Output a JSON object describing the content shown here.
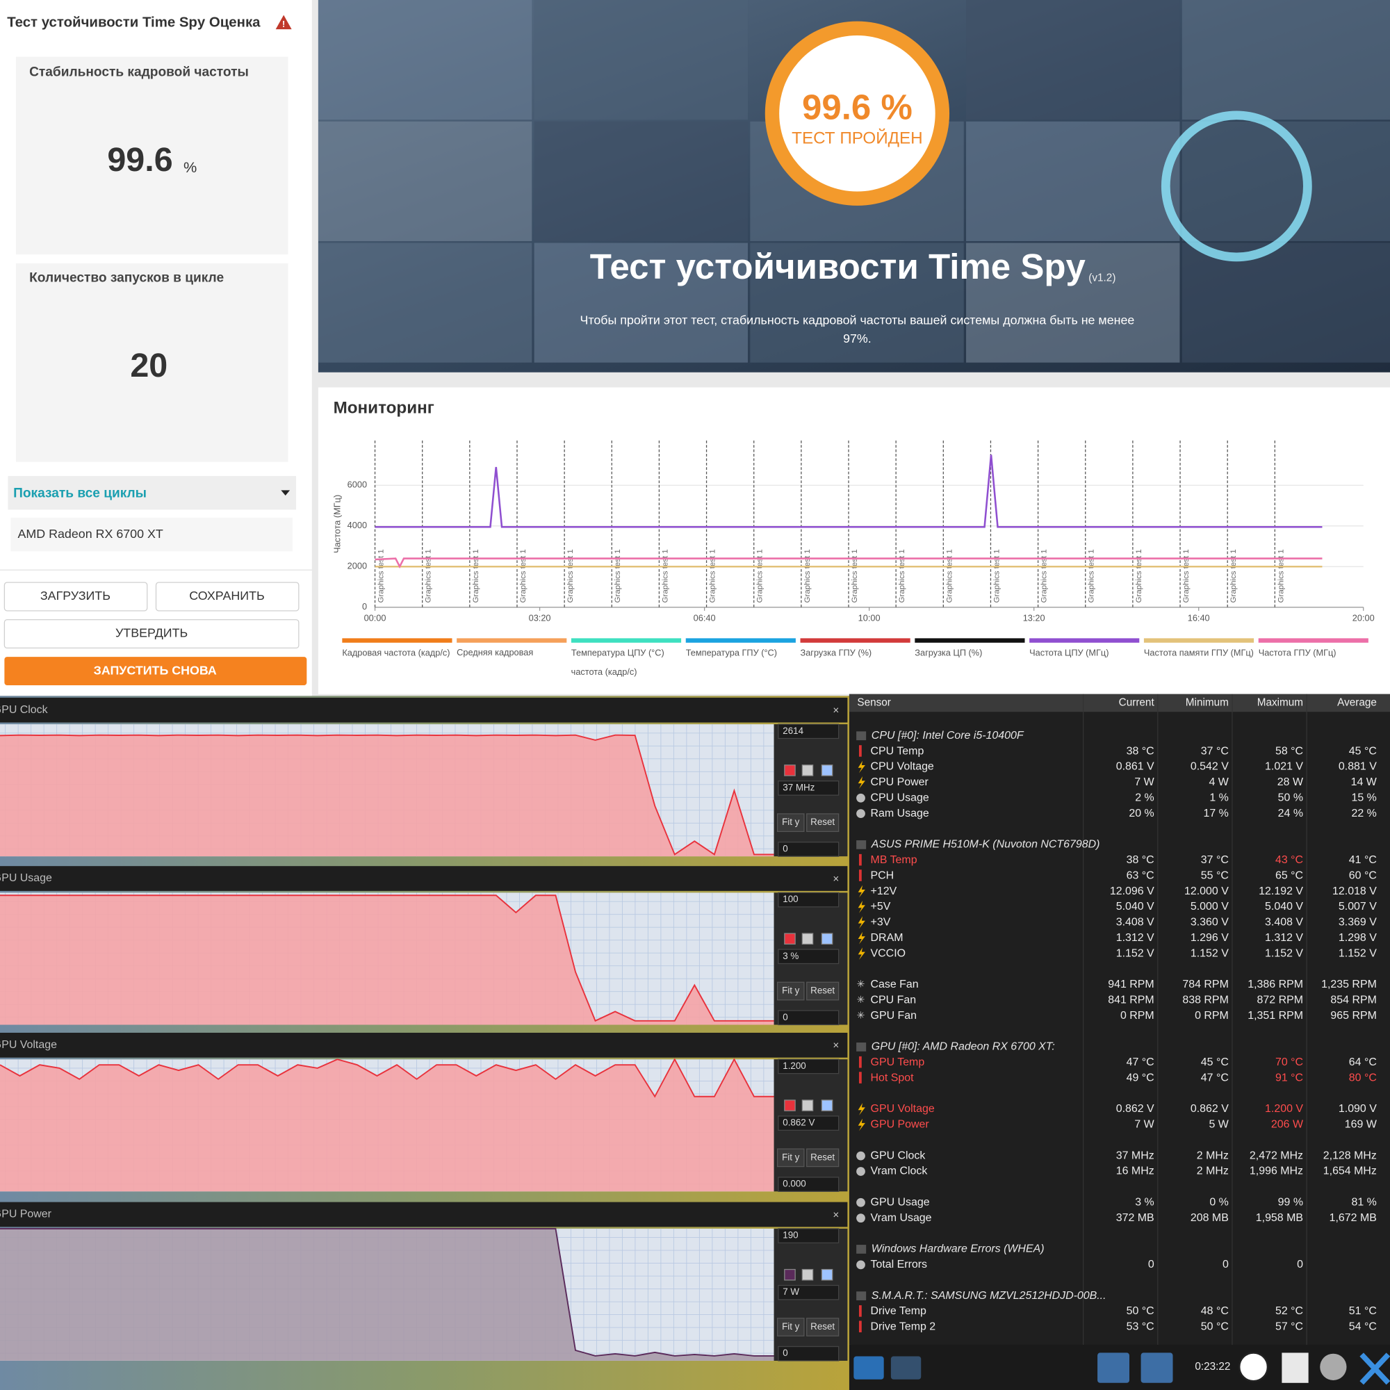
{
  "left_panel": {
    "title": "Тест устойчивости Time Spy Оценка",
    "cards": [
      {
        "label": "Стабильность кадровой частоты",
        "value": 99.6,
        "unit": "%"
      },
      {
        "label": "Количество запусков в цикле",
        "value": 20
      }
    ],
    "dropdown": "Показать все циклы",
    "device": "AMD Radeon RX 6700 XT",
    "buttons": [
      "ЗАГРУЗИТЬ",
      "СОХРАНИТЬ",
      "УТВЕРДИТЬ",
      "ЗАПУСТИТЬ СНОВА"
    ]
  },
  "banner": {
    "score": "99.6 %",
    "status": "ТЕСТ ПРОЙДЕН",
    "title": "Тест устойчивости Time Spy",
    "version": "(v1.2)",
    "description": [
      "Чтобы пройти этот тест, стабильность кадровой частоты вашей системы должна быть не менее",
      "97%."
    ]
  },
  "monitoring": {
    "title": "Мониторинг",
    "chart_data": {
      "type": "line",
      "y_label": "Частота (МГц)",
      "x": [
        0,
        25,
        30,
        35,
        140,
        147,
        154,
        740,
        748,
        756,
        1150
      ],
      "xlim": [
        0,
        1200
      ],
      "xticks": [
        {
          "value": 0,
          "label": "00:00"
        },
        {
          "value": 200,
          "label": "03:20"
        },
        {
          "value": 400,
          "label": "06:40"
        },
        {
          "value": 600,
          "label": "10:00"
        },
        {
          "value": 800,
          "label": "13:20"
        },
        {
          "value": 1000,
          "label": "16:40"
        },
        {
          "value": 1200,
          "label": "20:00"
        }
      ],
      "ylim": [
        0,
        8200
      ],
      "yticks": [
        0,
        2000,
        4000,
        6000
      ],
      "grid": true,
      "markers": [
        {
          "x": 0,
          "label": "Graphics test 1"
        },
        {
          "x": 57.5,
          "label": "Graphics test 1"
        },
        {
          "x": 115,
          "label": "Graphics test 1"
        },
        {
          "x": 172.5,
          "label": "Graphics test 1"
        },
        {
          "x": 230,
          "label": "Graphics test 1"
        },
        {
          "x": 287.5,
          "label": "Graphics test 1"
        },
        {
          "x": 345,
          "label": "Graphics test 1"
        },
        {
          "x": 402.5,
          "label": "Graphics test 1"
        },
        {
          "x": 460,
          "label": "Graphics test 1"
        },
        {
          "x": 517.5,
          "label": "Graphics test 1"
        },
        {
          "x": 575,
          "label": "Graphics test 1"
        },
        {
          "x": 632.5,
          "label": "Graphics test 1"
        },
        {
          "x": 690,
          "label": "Graphics test 1"
        },
        {
          "x": 747.5,
          "label": "Graphics test 1"
        },
        {
          "x": 805,
          "label": "Graphics test 1"
        },
        {
          "x": 862.5,
          "label": "Graphics test 1"
        },
        {
          "x": 920,
          "label": "Graphics test 1"
        },
        {
          "x": 977.5,
          "label": "Graphics test 1"
        },
        {
          "x": 1035,
          "label": "Graphics test 1"
        },
        {
          "x": 1092.5,
          "label": "Graphics test 1"
        }
      ],
      "series": [
        {
          "name": "Кадровая частота (кадр/с)",
          "color": "#f07d1a",
          "values": [
            null,
            null,
            null,
            null,
            null,
            null,
            null,
            null,
            null,
            null,
            null
          ]
        },
        {
          "name": "Средняя кадровая частота (кадр/с)",
          "color": "#f5a05a",
          "values": [
            null,
            null,
            null,
            null,
            null,
            null,
            null,
            null,
            null,
            null,
            null
          ]
        },
        {
          "name": "Температура ЦПУ (°C)",
          "color": "#3ee0c0",
          "values": [
            null,
            null,
            null,
            null,
            null,
            null,
            null,
            null,
            null,
            null,
            null
          ]
        },
        {
          "name": "Температура ГПУ (°C)",
          "color": "#1ba3e0",
          "values": [
            null,
            null,
            null,
            null,
            null,
            null,
            null,
            null,
            null,
            null,
            null
          ]
        },
        {
          "name": "Загрузка ГПУ (%)",
          "color": "#d23a3a",
          "values": [
            null,
            null,
            null,
            null,
            null,
            null,
            null,
            null,
            null,
            null,
            null
          ]
        },
        {
          "name": "Загрузка ЦП (%)",
          "color": "#111111",
          "values": [
            null,
            null,
            null,
            null,
            null,
            null,
            null,
            null,
            null,
            null,
            null
          ]
        },
        {
          "name": "Частота ЦПУ (МГц)",
          "color": "#8f4fd0",
          "values": [
            3950,
            3950,
            3950,
            3950,
            3950,
            6900,
            3950,
            3950,
            7500,
            3950,
            3950
          ]
        },
        {
          "name": "Частота памяти ГПУ (МГц)",
          "color": "#e3c27a",
          "values": [
            2000,
            2000,
            2000,
            2000,
            2000,
            2000,
            2000,
            2000,
            2000,
            2000,
            2000
          ]
        },
        {
          "name": "Частота ГПУ (МГц)",
          "color": "#ec6fa8",
          "values": [
            2350,
            2400,
            2000,
            2400,
            2400,
            2400,
            2400,
            2400,
            2400,
            2400,
            2400
          ]
        }
      ]
    }
  },
  "hwinfo_graphs": [
    {
      "title": "GPU Clock",
      "max": 2614,
      "current": "37 MHz",
      "min": 0,
      "color": "#e8323c",
      "fill": "#f5a3a6",
      "values": [
        2390,
        2400,
        2395,
        2400,
        2390,
        2400,
        2395,
        2400,
        2390,
        2400,
        2395,
        2400,
        2390,
        2400,
        2395,
        2400,
        2390,
        2400,
        2395,
        2400,
        2390,
        2400,
        2395,
        2400,
        2390,
        2400,
        2395,
        2400,
        2390,
        2400,
        2300,
        2400,
        2395,
        1000,
        37,
        300,
        37,
        1300,
        37,
        37
      ]
    },
    {
      "title": "GPU Usage",
      "max": 100,
      "current": "3 %",
      "min": 0,
      "color": "#e8323c",
      "fill": "#f5a3a6",
      "values": [
        98,
        98,
        98,
        98,
        98,
        98,
        98,
        98,
        98,
        98,
        98,
        98,
        98,
        98,
        98,
        98,
        98,
        98,
        98,
        98,
        98,
        98,
        98,
        98,
        98,
        98,
        85,
        98,
        98,
        40,
        3,
        10,
        3,
        3,
        3,
        30,
        3,
        3,
        3,
        3
      ]
    },
    {
      "title": "GPU Voltage",
      "max": {
        "value": 1.2,
        "label": "1.200"
      },
      "current": "0.862 V",
      "min": {
        "value": 0,
        "label": "0.000"
      },
      "color": "#e8323c",
      "fill": "#f5a3a6",
      "values": [
        1.15,
        1.05,
        1.15,
        1.12,
        1.02,
        1.15,
        1.15,
        1.05,
        1.15,
        1.1,
        1.15,
        1.02,
        1.15,
        1.15,
        1.05,
        1.15,
        1.12,
        1.2,
        1.15,
        1.05,
        1.15,
        1.02,
        1.15,
        1.15,
        1.05,
        1.15,
        1.1,
        1.15,
        1.02,
        1.15,
        1.05,
        1.15,
        1.15,
        0.862,
        1.2,
        0.862,
        0.862,
        1.2,
        0.862,
        0.862
      ]
    },
    {
      "title": "GPU Power",
      "max": 190,
      "current": "7 W",
      "min": 0,
      "color": "#5a2a5a",
      "fill": "#a99aa9",
      "values": [
        190,
        190,
        190,
        190,
        190,
        190,
        190,
        190,
        190,
        190,
        190,
        190,
        190,
        190,
        190,
        190,
        190,
        190,
        190,
        190,
        190,
        190,
        190,
        190,
        190,
        190,
        190,
        190,
        190,
        15,
        7,
        10,
        7,
        12,
        7,
        9,
        7,
        10,
        7,
        7
      ]
    }
  ],
  "graph_buttons": [
    "Fit y",
    "Reset"
  ],
  "sensors": {
    "columns": [
      "Sensor",
      "Current",
      "Minimum",
      "Maximum",
      "Average"
    ],
    "groups": [
      {
        "header": "CPU [#0]: Intel Core i5-10400F",
        "blocks": [
          [
            {
              "icon": "temp",
              "cells": [
                "CPU Temp",
                "38 °C",
                "37 °C",
                "58 °C",
                "45 °C"
              ]
            },
            {
              "icon": "volt",
              "cells": [
                "CPU Voltage",
                "0.861 V",
                "0.542 V",
                "1.021 V",
                "0.881 V"
              ]
            },
            {
              "icon": "volt",
              "cells": [
                "CPU Power",
                "7 W",
                "4 W",
                "28 W",
                "14 W"
              ]
            },
            {
              "icon": "use",
              "cells": [
                "CPU Usage",
                "2 %",
                "1 %",
                "50 %",
                "15 %"
              ]
            },
            {
              "icon": "use",
              "cells": [
                "Ram Usage",
                "20 %",
                "17 %",
                "24 %",
                "22 %"
              ]
            }
          ]
        ]
      },
      {
        "header": "ASUS PRIME H510M-K (Nuvoton NCT6798D)",
        "blocks": [
          [
            {
              "icon": "temp",
              "red": [
                0,
                3
              ],
              "cells": [
                "MB Temp",
                "38 °C",
                "37 °C",
                "43 °C",
                "41 °C"
              ]
            },
            {
              "icon": "temp",
              "cells": [
                "PCH",
                "63 °C",
                "55 °C",
                "65 °C",
                "60 °C"
              ]
            },
            {
              "icon": "volt",
              "cells": [
                "+12V",
                "12.096 V",
                "12.000 V",
                "12.192 V",
                "12.018 V"
              ]
            },
            {
              "icon": "volt",
              "cells": [
                "+5V",
                "5.040 V",
                "5.000 V",
                "5.040 V",
                "5.007 V"
              ]
            },
            {
              "icon": "volt",
              "cells": [
                "+3V",
                "3.408 V",
                "3.360 V",
                "3.408 V",
                "3.369 V"
              ]
            },
            {
              "icon": "volt",
              "cells": [
                "DRAM",
                "1.312 V",
                "1.296 V",
                "1.312 V",
                "1.298 V"
              ]
            },
            {
              "icon": "volt",
              "cells": [
                "VCCIO",
                "1.152 V",
                "1.152 V",
                "1.152 V",
                "1.152 V"
              ]
            }
          ],
          [
            {
              "icon": "fan",
              "cells": [
                "Case Fan",
                "941 RPM",
                "784 RPM",
                "1,386 RPM",
                "1,235 RPM"
              ]
            },
            {
              "icon": "fan",
              "cells": [
                "CPU Fan",
                "841 RPM",
                "838 RPM",
                "872 RPM",
                "854 RPM"
              ]
            },
            {
              "icon": "fan",
              "cells": [
                "GPU Fan",
                "0 RPM",
                "0 RPM",
                "1,351 RPM",
                "965 RPM"
              ]
            }
          ]
        ]
      },
      {
        "header": "GPU [#0]: AMD Radeon RX 6700 XT:",
        "blocks": [
          [
            {
              "icon": "temp",
              "red": [
                0,
                3
              ],
              "cells": [
                "GPU Temp",
                "47 °C",
                "45 °C",
                "70 °C",
                "64 °C"
              ]
            },
            {
              "icon": "temp",
              "red": [
                0,
                3,
                4
              ],
              "cells": [
                "Hot Spot",
                "49 °C",
                "47 °C",
                "91 °C",
                "80 °C"
              ]
            }
          ],
          [
            {
              "icon": "volt",
              "red": [
                0,
                3
              ],
              "cells": [
                "GPU Voltage",
                "0.862 V",
                "0.862 V",
                "1.200 V",
                "1.090 V"
              ]
            },
            {
              "icon": "volt",
              "red": [
                0,
                3
              ],
              "cells": [
                "GPU Power",
                "7 W",
                "5 W",
                "206 W",
                "169 W"
              ]
            }
          ],
          [
            {
              "icon": "use",
              "cells": [
                "GPU Clock",
                "37 MHz",
                "2 MHz",
                "2,472 MHz",
                "2,128 MHz"
              ]
            },
            {
              "icon": "use",
              "cells": [
                "Vram Clock",
                "16 MHz",
                "2 MHz",
                "1,996 MHz",
                "1,654 MHz"
              ]
            }
          ],
          [
            {
              "icon": "use",
              "cells": [
                "GPU Usage",
                "3 %",
                "0 %",
                "99 %",
                "81 %"
              ]
            },
            {
              "icon": "use",
              "cells": [
                "Vram Usage",
                "372 MB",
                "208 MB",
                "1,958 MB",
                "1,672 MB"
              ]
            }
          ]
        ]
      },
      {
        "header": "Windows Hardware Errors (WHEA)",
        "blocks": [
          [
            {
              "icon": "use",
              "cells": [
                "Total Errors",
                "0",
                "0",
                "0"
              ]
            }
          ]
        ]
      },
      {
        "header": "S.M.A.R.T.: SAMSUNG MZVL2512HDJD-00B...",
        "blocks": [
          [
            {
              "icon": "temp",
              "cells": [
                "Drive Temp",
                "50 °C",
                "48 °C",
                "52 °C",
                "51 °C"
              ]
            },
            {
              "icon": "temp",
              "cells": [
                "Drive Temp 2",
                "53 °C",
                "50 °C",
                "57 °C",
                "54 °C"
              ]
            }
          ]
        ]
      }
    ]
  },
  "status_bar": {
    "time": "0:23:22"
  }
}
